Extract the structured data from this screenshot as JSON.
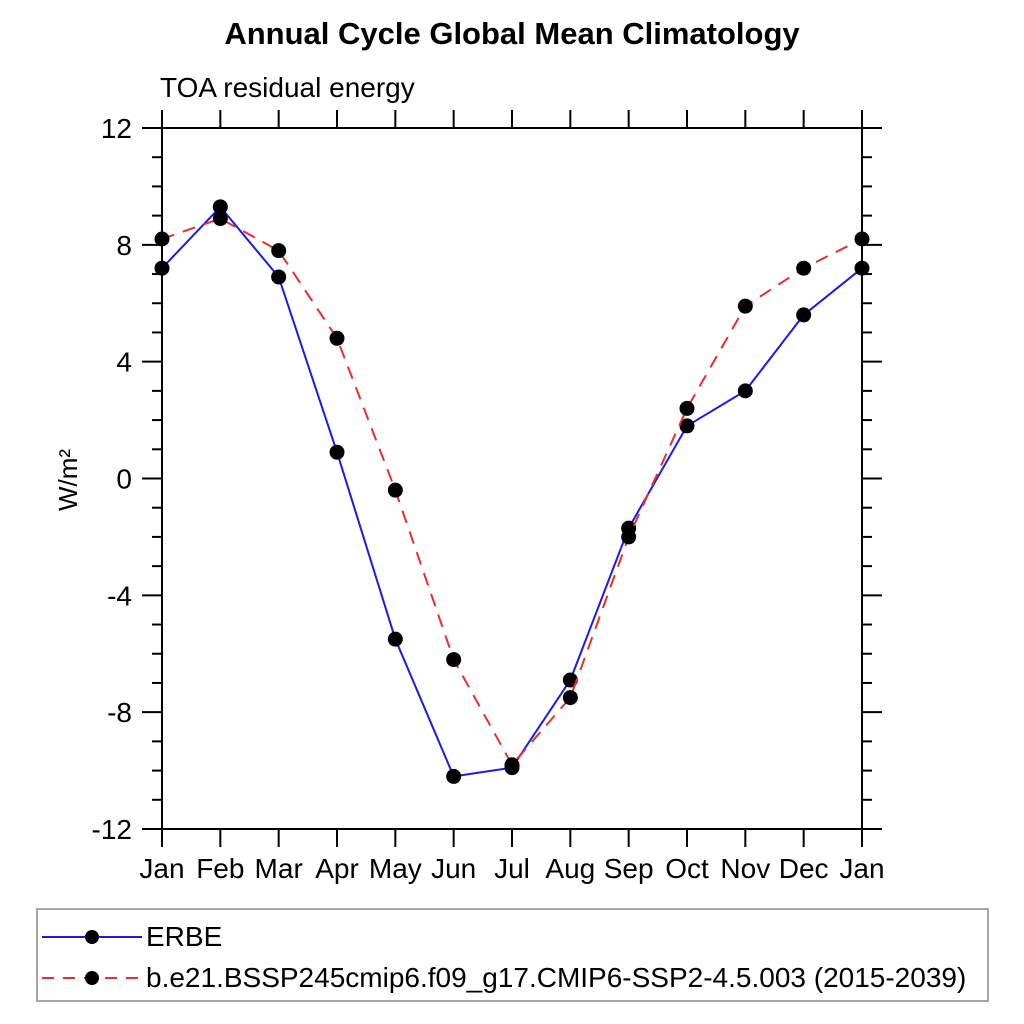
{
  "title": "Annual Cycle Global Mean Climatology",
  "subtitle": "TOA residual energy",
  "chart_data": {
    "type": "line",
    "categories": [
      "Jan",
      "Feb",
      "Mar",
      "Apr",
      "May",
      "Jun",
      "Jul",
      "Aug",
      "Sep",
      "Oct",
      "Nov",
      "Dec",
      "Jan"
    ],
    "xlabel": "",
    "ylabel": "W/m²",
    "ylim": [
      -12,
      12
    ],
    "ytick_step": 4,
    "yminor_step": 1,
    "ytick_labels": [
      "-12",
      "-8",
      "-4",
      "0",
      "4",
      "8",
      "12"
    ],
    "grid": false,
    "legend_position": "bottom-box",
    "frame_color": "#000000",
    "marker_color": "#000000",
    "series": [
      {
        "name": "ERBE",
        "color": "#1a1aee",
        "line_style": "solid",
        "marker": "filled-circle",
        "values": [
          7.2,
          9.3,
          6.9,
          0.9,
          -5.5,
          -10.2,
          -9.9,
          -6.9,
          -1.7,
          1.8,
          3.0,
          5.6,
          7.2
        ]
      },
      {
        "name": "b.e21.BSSP245cmip6.f09_g17.CMIP6-SSP2-4.5.003 (2015-2039)",
        "color": "#ee2c2c",
        "line_style": "dashed",
        "marker": "filled-circle",
        "values": [
          8.2,
          8.9,
          7.8,
          4.8,
          -0.4,
          -6.2,
          -9.8,
          -7.5,
          -2.0,
          2.4,
          5.9,
          7.2,
          8.2
        ]
      }
    ]
  },
  "legend": {
    "items": [
      {
        "label": "ERBE"
      },
      {
        "label": "b.e21.BSSP245cmip6.f09_g17.CMIP6-SSP2-4.5.003 (2015-2039)"
      }
    ]
  }
}
